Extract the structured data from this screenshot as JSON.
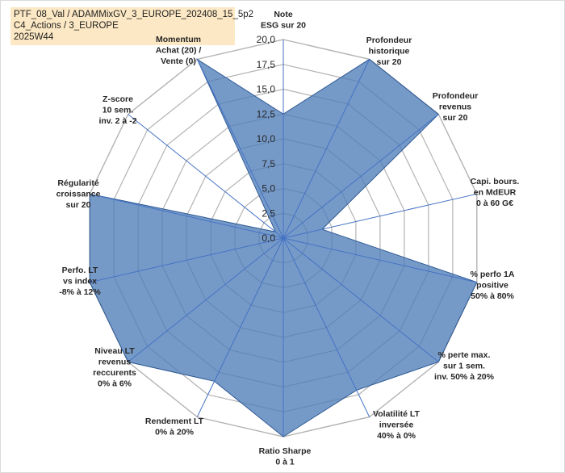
{
  "header": {
    "line1": "PTF_08_Val / ADAMMixGV_3_EUROPE_202408_15_5p2",
    "line2": "C4_Actions / 3_EUROPE",
    "line3": "2025W44"
  },
  "colors": {
    "fill": "#4f7eb8",
    "stroke": "#2f5a94",
    "grid": "#b3b3b3",
    "spoke": "#4472c4",
    "title_bg": "#fce8c4"
  },
  "chart_data": {
    "type": "radar",
    "rmin": 0,
    "rmax": 20,
    "ticks": [
      "0,0",
      "2,5",
      "5,0",
      "7,5",
      "10,0",
      "12,5",
      "15,0",
      "17,5",
      "20,0"
    ],
    "axes": [
      {
        "label": "Note\nESG sur 20",
        "value": 12.5
      },
      {
        "label": "Profondeur\nhistorique\nsur 20",
        "value": 20
      },
      {
        "label": "Profondeur\nrevenus\nsur 20",
        "value": 20
      },
      {
        "label": "Capi. bours.\nen MdEUR\n0 à 60 G€",
        "value": 4
      },
      {
        "label": "% perfo 1A\npositive\n50% à 80%",
        "value": 20
      },
      {
        "label": "% perte max.\nsur 1 sem.\ninv. 50% à 20%",
        "value": 20
      },
      {
        "label": "Volatilité LT\ninversée\n40% à 0%",
        "value": 17
      },
      {
        "label": "Ratio Sharpe\n0 à 1",
        "value": 20
      },
      {
        "label": "Rendement LT\n0% à 20%",
        "value": 16
      },
      {
        "label": "Niveau LT\nrevenus\nreccurents\n0% à 6%",
        "value": 20
      },
      {
        "label": "Perfo. LT\nvs index\n-8% à 12%",
        "value": 20
      },
      {
        "label": "Régularité\ncroissance\nsur 20",
        "value": 20
      },
      {
        "label": "Z-score\n10 sem.\ninv. 2 à -2",
        "value": 1
      },
      {
        "label": "Momentum\nAchat (20) /\nVente (0)",
        "value": 20
      }
    ]
  }
}
